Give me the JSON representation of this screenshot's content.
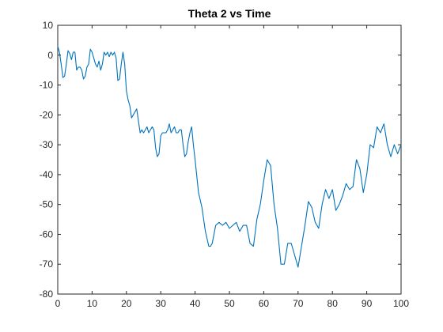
{
  "colors": {
    "series": "#0072BD",
    "axes": "#262626",
    "background": "#ffffff"
  },
  "chart_data": {
    "type": "line",
    "title": "Theta 2 vs Time",
    "xlabel": "",
    "ylabel": "",
    "xlim": [
      0,
      100
    ],
    "ylim": [
      -80,
      10
    ],
    "xticks": [
      0,
      10,
      20,
      30,
      40,
      50,
      60,
      70,
      80,
      90,
      100
    ],
    "yticks": [
      -80,
      -70,
      -60,
      -50,
      -40,
      -30,
      -20,
      -10,
      0,
      10
    ],
    "grid": false,
    "series": [
      {
        "x": [
          0,
          0.5,
          1,
          1.5,
          2,
          2.5,
          3,
          3.5,
          4,
          4.5,
          5,
          5.5,
          6,
          6.5,
          7,
          7.5,
          8,
          8.5,
          9,
          9.5,
          10,
          10.5,
          11,
          11.5,
          12,
          12.5,
          13,
          13.5,
          14,
          14.5,
          15,
          15.5,
          16,
          16.5,
          17,
          17.5,
          18,
          18.5,
          19,
          19.5,
          20,
          20.5,
          21,
          21.5,
          22,
          22.5,
          23,
          23.5,
          24,
          24.5,
          25,
          25.5,
          26,
          26.5,
          27,
          27.5,
          28,
          28.5,
          29,
          29.5,
          30,
          30.5,
          31,
          31.5,
          32,
          32.5,
          33,
          33.5,
          34,
          34.5,
          35,
          35.5,
          36,
          36.5,
          37,
          37.5,
          38,
          38.5,
          39,
          39.5,
          40,
          41,
          42,
          43,
          44,
          44.5,
          45,
          46,
          47,
          48,
          49,
          50,
          51,
          52,
          53,
          54,
          55,
          56,
          57,
          58,
          59,
          60,
          61,
          62,
          63,
          64,
          65,
          66,
          67,
          68,
          69,
          70,
          71,
          72,
          73,
          74,
          75,
          76,
          77,
          78,
          79,
          80,
          81,
          82,
          83,
          84,
          85,
          86,
          87,
          88,
          89,
          90,
          91,
          92,
          93,
          94,
          95,
          96,
          97,
          98,
          99,
          100
        ],
        "y": [
          3,
          1,
          -3,
          -7.5,
          -7,
          -3,
          1.5,
          0.5,
          -1.5,
          1,
          1,
          -5,
          -4,
          -4,
          -5,
          -8,
          -7,
          -4,
          -3,
          2,
          1,
          -1,
          -3,
          -4,
          -2,
          -5,
          -3,
          1,
          0,
          1,
          -0.5,
          1,
          0,
          1,
          -1,
          -8.5,
          -8,
          -3,
          1,
          -3,
          -12,
          -15,
          -17,
          -21,
          -20,
          -19,
          -18,
          -22,
          -26,
          -25,
          -26,
          -25,
          -24,
          -26,
          -25,
          -24,
          -25,
          -31,
          -34,
          -33,
          -27,
          -26,
          -26,
          -26,
          -25,
          -23,
          -26,
          -25,
          -24,
          -26,
          -26,
          -25,
          -25,
          -30,
          -34,
          -33,
          -29,
          -26,
          -24,
          -30,
          -35,
          -46,
          -51,
          -59,
          -64,
          -64,
          -63,
          -57,
          -56,
          -57,
          -56,
          -58,
          -57,
          -56,
          -59,
          -57,
          -57,
          -63,
          -64,
          -55,
          -50,
          -42,
          -35,
          -37,
          -50,
          -58,
          -70,
          -70,
          -63,
          -63,
          -67,
          -71,
          -64,
          -57,
          -49,
          -51,
          -56,
          -58,
          -50,
          -45,
          -48,
          -45,
          -52,
          -50,
          -47,
          -43,
          -45,
          -44,
          -35,
          -38,
          -46,
          -40,
          -30,
          -31,
          -24,
          -26,
          -23,
          -30,
          -34,
          -30,
          -33,
          -30
        ]
      }
    ]
  }
}
